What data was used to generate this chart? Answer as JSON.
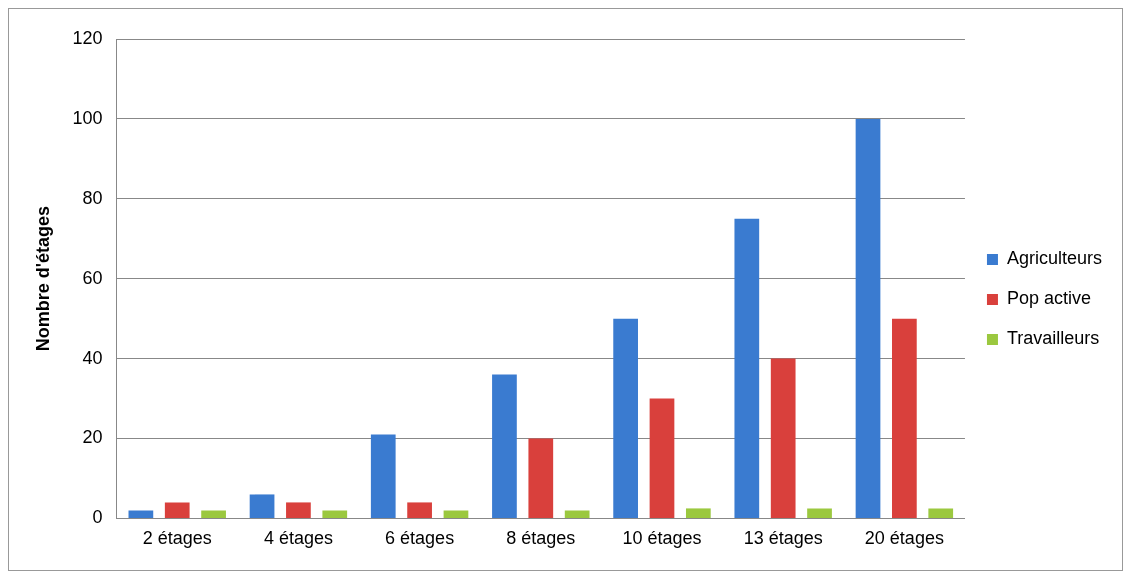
{
  "chart_data": {
    "type": "bar",
    "ylabel": "Nombre d'étages",
    "categories": [
      "2 étages",
      "4 étages",
      "6 étages",
      "8 étages",
      "10 étages",
      "13 étages",
      "20 étages"
    ],
    "series": [
      {
        "name": "Agriculteurs",
        "color": "#3a7bd0",
        "values": [
          2,
          6,
          21,
          36,
          50,
          75,
          100
        ]
      },
      {
        "name": "Pop active",
        "color": "#d9403c",
        "values": [
          4,
          4,
          4,
          20,
          30,
          40,
          50
        ]
      },
      {
        "name": "Travailleurs",
        "color": "#9bc83f",
        "values": [
          2,
          2,
          2,
          2,
          2.5,
          2.5,
          2.5
        ]
      }
    ],
    "ylim": [
      0,
      120
    ],
    "yticks": [
      0,
      20,
      40,
      60,
      80,
      100,
      120
    ],
    "grid": "y",
    "legend": "right"
  }
}
